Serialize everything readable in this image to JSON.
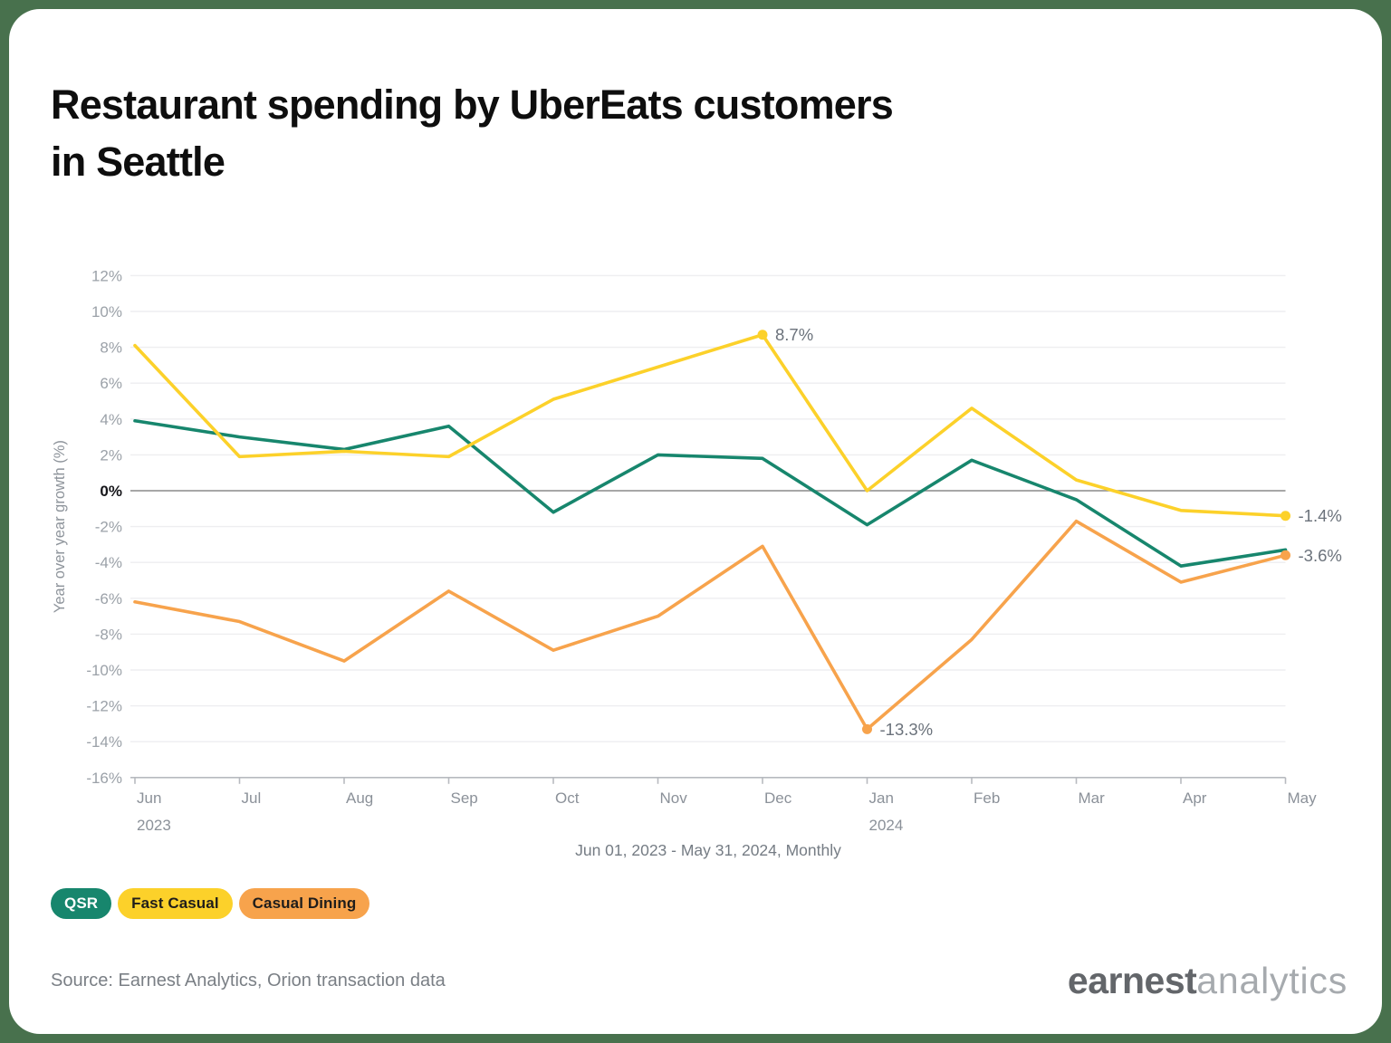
{
  "page": {
    "background": "#48714D",
    "card": "#FFFFFF"
  },
  "title": {
    "line1": "Restaurant spending by UberEats customers",
    "line2": "in Seattle"
  },
  "chart_data": {
    "type": "line",
    "title": "Restaurant spending by UberEats customers in Seattle",
    "subtitle": "Jun 01, 2023 - May 31, 2024, Monthly",
    "ylabel": "Year over year growth (%)",
    "x": [
      "Jun",
      "Jul",
      "Aug",
      "Sep",
      "Oct",
      "Nov",
      "Dec",
      "Jan",
      "Feb",
      "Mar",
      "Apr",
      "May"
    ],
    "x_year_labels": [
      {
        "index": 0,
        "label": "2023"
      },
      {
        "index": 7,
        "label": "2024"
      }
    ],
    "ylim": [
      -16,
      12
    ],
    "y_tick_step": 2,
    "y_tick_suffix": "%",
    "grid": true,
    "zero_line": true,
    "legend_position": "bottom-left",
    "series": [
      {
        "name": "QSR",
        "color": "#17866D",
        "values": [
          3.9,
          3.0,
          2.3,
          3.6,
          -1.2,
          2.0,
          1.8,
          -1.9,
          1.7,
          -0.5,
          -4.2,
          -3.3
        ]
      },
      {
        "name": "Fast Casual",
        "color": "#FCD12A",
        "values": [
          8.1,
          1.9,
          2.2,
          1.9,
          5.1,
          6.9,
          8.7,
          0.0,
          4.6,
          0.6,
          -1.1,
          -1.4
        ]
      },
      {
        "name": "Casual Dining",
        "color": "#F7A34C",
        "values": [
          -6.2,
          -7.3,
          -9.5,
          -5.6,
          -8.9,
          -7.0,
          -3.1,
          -13.3,
          -8.3,
          -1.7,
          -5.1,
          -3.6
        ]
      }
    ],
    "annotations": [
      {
        "series": "Fast Casual",
        "x_index": 6,
        "label": "8.7%"
      },
      {
        "series": "Casual Dining",
        "x_index": 7,
        "label": "-13.3%"
      },
      {
        "series": "Fast Casual",
        "x_index": 11,
        "label": "-1.4%"
      },
      {
        "series": "Casual Dining",
        "x_index": 11,
        "label": "-3.6%"
      }
    ]
  },
  "legend": [
    {
      "label": "QSR",
      "bg": "#17866D",
      "text": "#FFFFFF"
    },
    {
      "label": "Fast Casual",
      "bg": "#FCD12A",
      "text": "#1F1D1B"
    },
    {
      "label": "Casual Dining",
      "bg": "#F7A34C",
      "text": "#1F1D1B"
    }
  ],
  "footer": {
    "source": "Source: Earnest Analytics, Orion transaction data",
    "logo": {
      "primary": "earnest",
      "secondary": "analytics"
    }
  }
}
